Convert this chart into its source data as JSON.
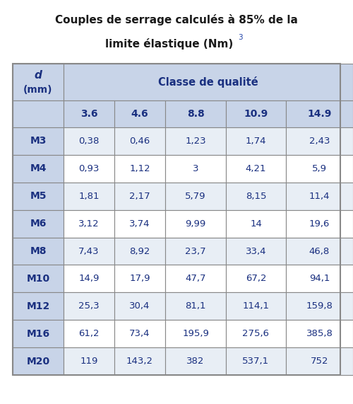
{
  "title_line1": "Couples de serrage calculés à 85% de la",
  "title_line2": "limite élastique (Nm)",
  "title_superscript": "3",
  "col_header_left": "d\n(mm)",
  "col_header_right": "Classe de qualité",
  "sub_headers": [
    "3.6",
    "4.6",
    "8.8",
    "10.9",
    "14.9"
  ],
  "row_labels": [
    "M3",
    "M4",
    "M5",
    "M6",
    "M8",
    "M10",
    "M12",
    "M16",
    "M20"
  ],
  "table_data": [
    [
      "0,38",
      "0,46",
      "1,23",
      "1,74",
      "2,43"
    ],
    [
      "0,93",
      "1,12",
      "3",
      "4,21",
      "5,9"
    ],
    [
      "1,81",
      "2,17",
      "5,79",
      "8,15",
      "11,4"
    ],
    [
      "3,12",
      "3,74",
      "9,99",
      "14",
      "19,6"
    ],
    [
      "7,43",
      "8,92",
      "23,7",
      "33,4",
      "46,8"
    ],
    [
      "14,9",
      "17,9",
      "47,7",
      "67,2",
      "94,1"
    ],
    [
      "25,3",
      "30,4",
      "81,1",
      "114,1",
      "159,8"
    ],
    [
      "61,2",
      "73,4",
      "195,9",
      "275,6",
      "385,8"
    ],
    [
      "119",
      "143,2",
      "382",
      "537,1",
      "752"
    ]
  ],
  "header_bg": "#c8d4e8",
  "row_bg_white": "#ffffff",
  "row_bg_gray": "#e8eef5",
  "border_color": "#888888",
  "text_color": "#1a3080",
  "title_color": "#1a1a1a",
  "superscript_color": "#2244aa",
  "fig_bg": "#ffffff",
  "title_fontsize": 11,
  "header_fontsize": 10.5,
  "subheader_fontsize": 10,
  "data_fontsize": 9.5,
  "label_fontsize": 10
}
